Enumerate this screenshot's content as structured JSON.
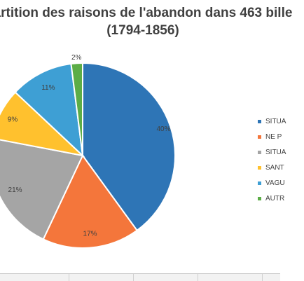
{
  "chart_data": {
    "type": "pie",
    "title_lines": [
      "artition des raisons de l'abandon  dans 463  bille",
      "(1794-1856)"
    ],
    "categories": [
      "SITUA",
      "NE P",
      "SITUA",
      "SANT",
      "VAGU",
      "AUTR"
    ],
    "values": [
      40,
      17,
      21,
      9,
      11,
      2
    ],
    "data_labels": [
      "40%",
      "17%",
      "21%",
      "9%",
      "11%",
      "2%"
    ],
    "colors": [
      "#2e75b6",
      "#f4763b",
      "#a5a5a5",
      "#ffc12e",
      "#3e9fd4",
      "#5cad47"
    ],
    "legend_position": "right"
  }
}
